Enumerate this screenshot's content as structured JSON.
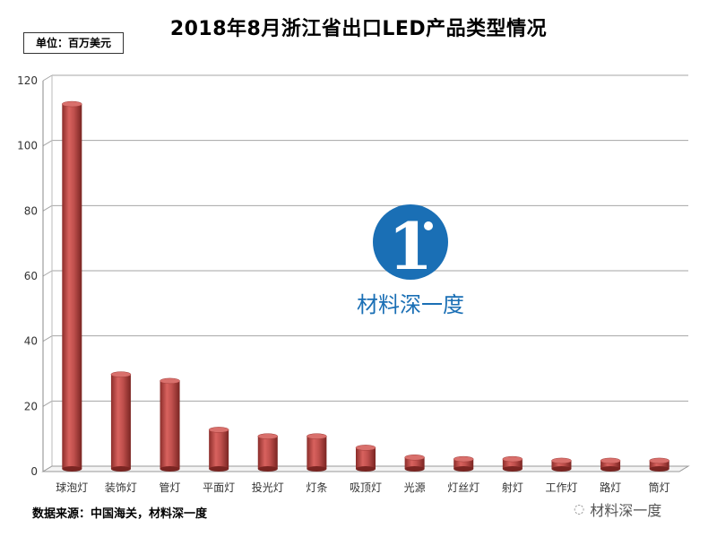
{
  "title": "2018年8月浙江省出口LED产品类型情况",
  "unit_label": "单位：百万美元",
  "source": "数据来源：中国海关，材料深一度",
  "watermark": {
    "text": "材料深一度",
    "footer_text": "材料深一度",
    "logo_color": "#1a6fb5"
  },
  "colors": {
    "bar": "#c0504d",
    "bar_dark": "#8b2d2a",
    "bar_light": "#e07a76"
  },
  "chart_data": {
    "type": "bar",
    "categories": [
      "球泡灯",
      "装饰灯",
      "管灯",
      "平面灯",
      "投光灯",
      "灯条",
      "吸顶灯",
      "光源",
      "灯丝灯",
      "射灯",
      "工作灯",
      "路灯",
      "筒灯"
    ],
    "values": [
      112,
      29,
      27,
      12,
      10,
      10,
      6.5,
      3.5,
      3,
      3,
      2.5,
      2.5,
      2.5
    ],
    "ylim": [
      0,
      120
    ],
    "yticks": [
      "0",
      "20",
      "40",
      "60",
      "80",
      "100",
      "120"
    ],
    "grid": true,
    "xlabel": "",
    "ylabel": ""
  }
}
